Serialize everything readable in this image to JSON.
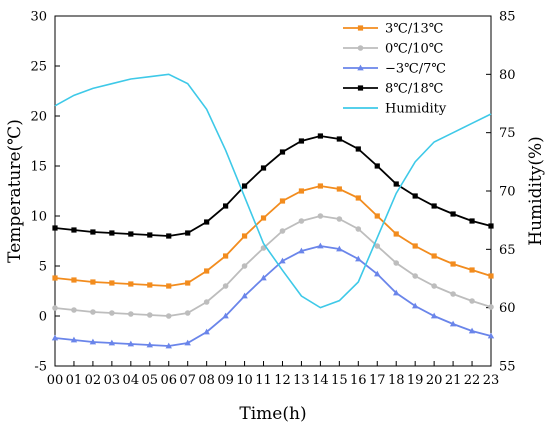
{
  "chart_data": {
    "type": "line",
    "xlabel": "Time(h)",
    "ylabel_left": "Temperature(℃)",
    "ylabel_right": "Humidity(%)",
    "x": [
      "00",
      "01",
      "02",
      "03",
      "04",
      "05",
      "06",
      "07",
      "08",
      "09",
      "10",
      "11",
      "12",
      "13",
      "14",
      "15",
      "16",
      "17",
      "18",
      "19",
      "20",
      "21",
      "22",
      "23"
    ],
    "ylim_left": [
      -5,
      30
    ],
    "yticks_left": [
      "30",
      "25",
      "20",
      "15",
      "10",
      "5",
      "0",
      "-5"
    ],
    "ylim_right": [
      55,
      85
    ],
    "yticks_right": [
      "85",
      "80",
      "75",
      "70",
      "65",
      "60",
      "55"
    ],
    "grid": false,
    "legend_position": "top-right",
    "series": [
      {
        "name": "3℃/13℃",
        "axis": "left",
        "color": "#f28c1e",
        "marker": "square",
        "values": [
          3.8,
          3.6,
          3.4,
          3.3,
          3.2,
          3.1,
          3.0,
          3.3,
          4.5,
          6.0,
          8.0,
          9.8,
          11.5,
          12.5,
          13.0,
          12.7,
          11.8,
          10.0,
          8.2,
          7.0,
          6.0,
          5.2,
          4.6,
          4.0
        ]
      },
      {
        "name": "0℃/10℃",
        "axis": "left",
        "color": "#bdbdbd",
        "marker": "circle",
        "values": [
          0.8,
          0.6,
          0.4,
          0.3,
          0.2,
          0.1,
          0.0,
          0.3,
          1.4,
          3.0,
          5.0,
          6.8,
          8.5,
          9.5,
          10.0,
          9.7,
          8.7,
          7.0,
          5.3,
          4.0,
          3.0,
          2.2,
          1.5,
          0.9
        ]
      },
      {
        "name": "−3℃/7℃",
        "axis": "left",
        "color": "#6a85ea",
        "marker": "triangle",
        "values": [
          -2.2,
          -2.4,
          -2.6,
          -2.7,
          -2.8,
          -2.9,
          -3.0,
          -2.7,
          -1.6,
          0.0,
          2.0,
          3.8,
          5.5,
          6.5,
          7.0,
          6.7,
          5.7,
          4.2,
          2.3,
          1.0,
          0.0,
          -0.8,
          -1.5,
          -2.0
        ]
      },
      {
        "name": "8℃/18℃",
        "axis": "left",
        "color": "#000000",
        "marker": "square",
        "values": [
          8.8,
          8.6,
          8.4,
          8.3,
          8.2,
          8.1,
          8.0,
          8.3,
          9.4,
          11.0,
          13.0,
          14.8,
          16.4,
          17.5,
          18.0,
          17.7,
          16.7,
          15.0,
          13.2,
          12.0,
          11.0,
          10.2,
          9.5,
          9.0
        ]
      },
      {
        "name": "Humidity",
        "axis": "right",
        "color": "#3ec9e8",
        "marker": "none",
        "values": [
          77.3,
          78.2,
          78.8,
          79.2,
          79.6,
          79.8,
          80.0,
          79.2,
          77.0,
          73.5,
          69.5,
          65.5,
          63.2,
          61.0,
          60.0,
          60.6,
          62.2,
          66.0,
          69.8,
          72.5,
          74.2,
          75.0,
          75.8,
          76.6
        ]
      }
    ]
  }
}
